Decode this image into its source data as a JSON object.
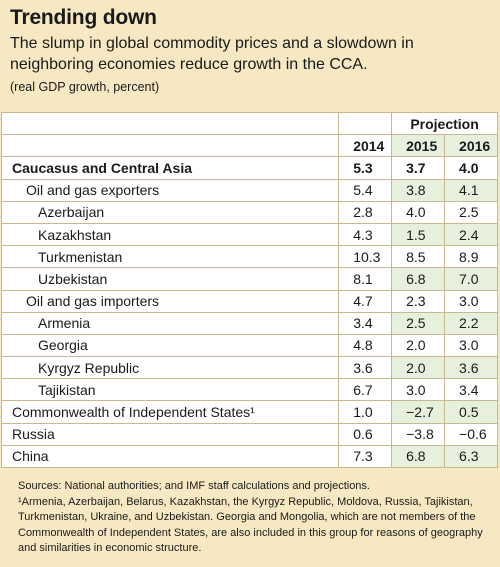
{
  "title": "Trending down",
  "subtitle": "The slump in global commodity prices and a slowdown in neighboring economies reduce growth in the CCA.",
  "units": "(real GDP growth, percent)",
  "header": {
    "projection": "Projection",
    "years": [
      "2014",
      "2015",
      "2016"
    ]
  },
  "rows": [
    {
      "name": "Caucasus and Central Asia",
      "v": [
        "5.3",
        "3.7",
        "4.0"
      ]
    },
    {
      "name": "Oil and gas exporters",
      "v": [
        "5.4",
        "3.8",
        "4.1"
      ]
    },
    {
      "name": "Azerbaijan",
      "v": [
        "2.8",
        "4.0",
        "2.5"
      ]
    },
    {
      "name": "Kazakhstan",
      "v": [
        "4.3",
        "1.5",
        "2.4"
      ]
    },
    {
      "name": "Turkmenistan",
      "v": [
        "10.3",
        "8.5",
        "8.9"
      ]
    },
    {
      "name": "Uzbekistan",
      "v": [
        "8.1",
        "6.8",
        "7.0"
      ]
    },
    {
      "name": "Oil and gas importers",
      "v": [
        "4.7",
        "2.3",
        "3.0"
      ]
    },
    {
      "name": "Armenia",
      "v": [
        "3.4",
        "2.5",
        "2.2"
      ]
    },
    {
      "name": "Georgia",
      "v": [
        "4.8",
        "2.0",
        "3.0"
      ]
    },
    {
      "name": "Kyrgyz Republic",
      "v": [
        "3.6",
        "2.0",
        "3.6"
      ]
    },
    {
      "name": "Tajikistan",
      "v": [
        "6.7",
        "3.0",
        "3.4"
      ]
    },
    {
      "name": "Commonwealth of Independent States¹",
      "v": [
        "1.0",
        "−2.7",
        "0.5"
      ]
    },
    {
      "name": "Russia",
      "v": [
        "0.6",
        "−3.8",
        "−0.6"
      ]
    },
    {
      "name": "China",
      "v": [
        "7.3",
        "6.8",
        "6.3"
      ]
    }
  ],
  "notes": {
    "sources": "Sources: National authorities; and IMF staff calculations and projections.",
    "footnote": "¹Armenia, Azerbaijan, Belarus, Kazakhstan, the Kyrgyz Republic, Moldova, Russia, Tajikistan, Turkmenistan, Ukraine, and Uzbekistan. Georgia and Mongolia, which are not members of the Commonwealth of Independent States, are also included in this group for reasons of geography and similarities in economic structure."
  }
}
